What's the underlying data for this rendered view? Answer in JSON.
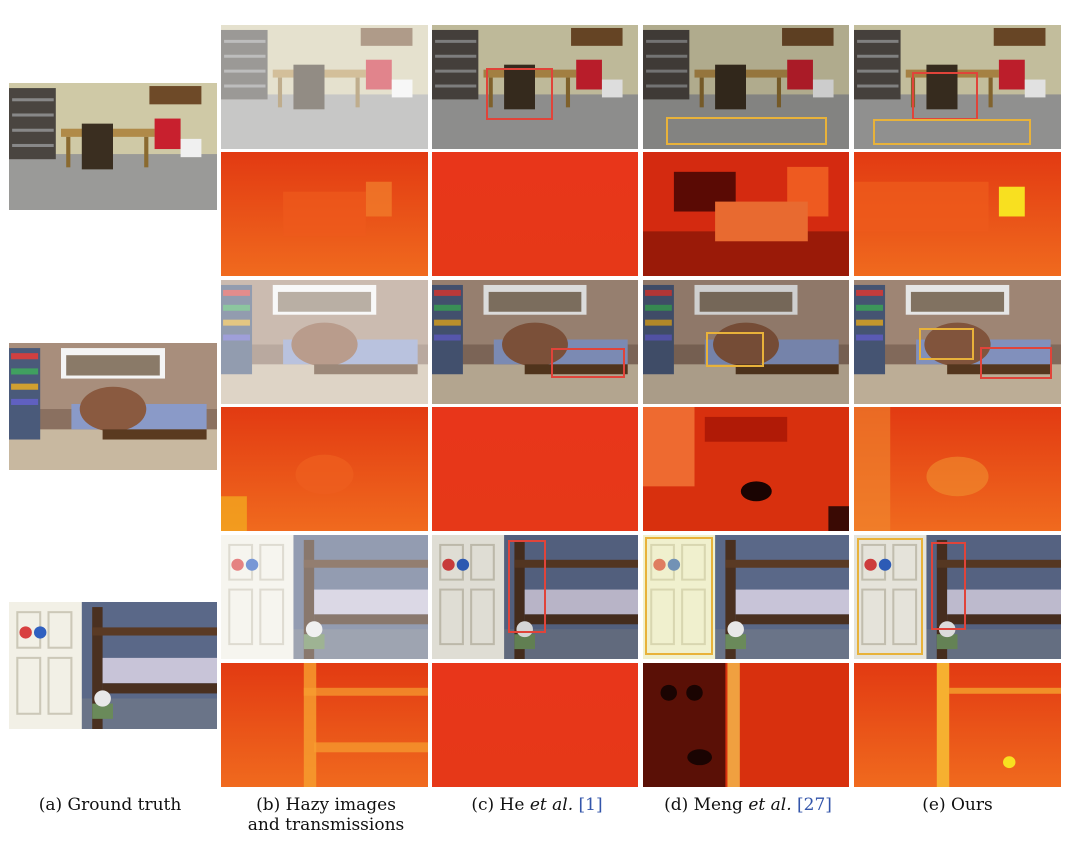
{
  "figure": {
    "captions": {
      "a": "(a) Ground truth",
      "b_line1": "(b) Hazy images",
      "b_line2": "and transmissions",
      "c_pre": "(c) He ",
      "c_em": "et al.",
      "c_cite": "[1]",
      "d_pre": "(d) Meng ",
      "d_em": "et al.",
      "d_cite": "[27]",
      "e": "(e) Ours"
    },
    "colors": {
      "highlight_red": "#e0443a",
      "highlight_yellow": "#e8b23a",
      "citation": "#3355aa"
    },
    "panels": {
      "gt": [
        "scene-room-shelves-chairs",
        "scene-bedroom-window",
        "scene-bunkbed-door"
      ],
      "hazy": [
        "hazy-shelves",
        "hazy-bedroom",
        "hazy-bunkbed"
      ],
      "transmission": [
        "transmission-maps"
      ]
    }
  }
}
